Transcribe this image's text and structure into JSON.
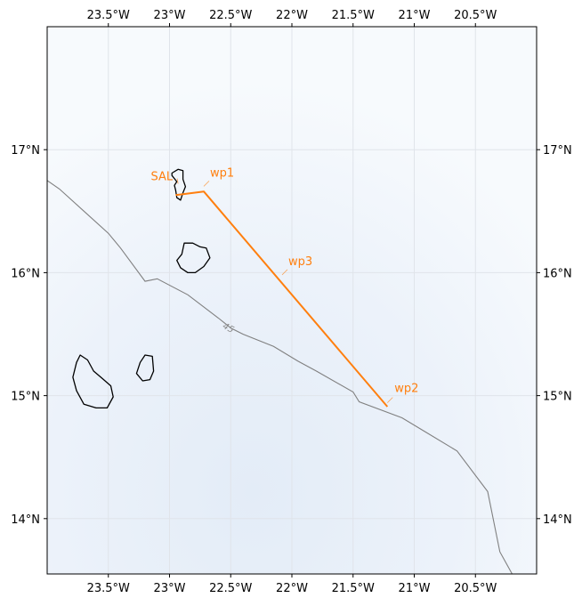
{
  "map": {
    "lon_range": [
      -24.0,
      -20.0
    ],
    "lat_range": [
      13.55,
      18.0
    ],
    "lon_ticks": [
      {
        "value": -23.5,
        "label": "23.5°W"
      },
      {
        "value": -23.0,
        "label": "23°W"
      },
      {
        "value": -22.5,
        "label": "22.5°W"
      },
      {
        "value": -22.0,
        "label": "22°W"
      },
      {
        "value": -21.5,
        "label": "21.5°W"
      },
      {
        "value": -21.0,
        "label": "21°W"
      },
      {
        "value": -20.5,
        "label": "20.5°W"
      }
    ],
    "lat_ticks": [
      {
        "value": 17.0,
        "label": "17°N"
      },
      {
        "value": 16.0,
        "label": "16°N"
      },
      {
        "value": 15.0,
        "label": "15°N"
      },
      {
        "value": 14.0,
        "label": "14°N"
      }
    ],
    "gridlines": true,
    "colors": {
      "flight_track": "#ff7f0e",
      "waypoint_label": "#ff7f0e",
      "contour": "#808080",
      "coastline": "#000000",
      "gridline": "#e0e4ea"
    },
    "flight_track": {
      "points": [
        {
          "lon": -22.95,
          "lat": 16.63
        },
        {
          "lon": -22.72,
          "lat": 16.66
        },
        {
          "lon": -21.22,
          "lat": 14.91
        }
      ]
    },
    "waypoints": [
      {
        "name": "SAL",
        "lon": -22.93,
        "lat": 16.78,
        "label": "SAL"
      },
      {
        "name": "wp1",
        "lon": -22.72,
        "lat": 16.76,
        "label": "wp1"
      },
      {
        "name": "wp3",
        "lon": -22.08,
        "lat": 16.04,
        "label": "wp3"
      },
      {
        "name": "wp2",
        "lon": -21.22,
        "lat": 15.0,
        "label": "wp2"
      }
    ],
    "contour": {
      "label": "45",
      "label_at": {
        "lon": -22.52,
        "lat": 15.55
      },
      "points": [
        {
          "lon": -24.0,
          "lat": 16.75
        },
        {
          "lon": -23.9,
          "lat": 16.68
        },
        {
          "lon": -23.7,
          "lat": 16.5
        },
        {
          "lon": -23.5,
          "lat": 16.32
        },
        {
          "lon": -23.4,
          "lat": 16.2
        },
        {
          "lon": -23.2,
          "lat": 15.93
        },
        {
          "lon": -23.1,
          "lat": 15.95
        },
        {
          "lon": -22.85,
          "lat": 15.82
        },
        {
          "lon": -22.6,
          "lat": 15.63
        },
        {
          "lon": -22.5,
          "lat": 15.55
        },
        {
          "lon": -22.4,
          "lat": 15.5
        },
        {
          "lon": -22.15,
          "lat": 15.4
        },
        {
          "lon": -21.95,
          "lat": 15.28
        },
        {
          "lon": -21.8,
          "lat": 15.2
        },
        {
          "lon": -21.5,
          "lat": 15.03
        },
        {
          "lon": -21.45,
          "lat": 14.95
        },
        {
          "lon": -21.1,
          "lat": 14.82
        },
        {
          "lon": -20.9,
          "lat": 14.7
        },
        {
          "lon": -20.7,
          "lat": 14.58
        },
        {
          "lon": -20.65,
          "lat": 14.55
        },
        {
          "lon": -20.4,
          "lat": 14.22
        },
        {
          "lon": -20.3,
          "lat": 13.73
        },
        {
          "lon": -20.2,
          "lat": 13.55
        }
      ]
    },
    "islands": [
      {
        "name": "sal",
        "points": [
          {
            "lon": -22.98,
            "lat": 16.81
          },
          {
            "lon": -22.93,
            "lat": 16.84
          },
          {
            "lon": -22.89,
            "lat": 16.83
          },
          {
            "lon": -22.89,
            "lat": 16.76
          },
          {
            "lon": -22.87,
            "lat": 16.7
          },
          {
            "lon": -22.89,
            "lat": 16.65
          },
          {
            "lon": -22.91,
            "lat": 16.59
          },
          {
            "lon": -22.94,
            "lat": 16.61
          },
          {
            "lon": -22.95,
            "lat": 16.67
          },
          {
            "lon": -22.96,
            "lat": 16.71
          },
          {
            "lon": -22.94,
            "lat": 16.74
          },
          {
            "lon": -22.98,
            "lat": 16.79
          }
        ]
      },
      {
        "name": "boa-vista",
        "points": [
          {
            "lon": -22.88,
            "lat": 16.24
          },
          {
            "lon": -22.81,
            "lat": 16.24
          },
          {
            "lon": -22.75,
            "lat": 16.21
          },
          {
            "lon": -22.7,
            "lat": 16.2
          },
          {
            "lon": -22.67,
            "lat": 16.12
          },
          {
            "lon": -22.72,
            "lat": 16.05
          },
          {
            "lon": -22.79,
            "lat": 16.0
          },
          {
            "lon": -22.85,
            "lat": 16.0
          },
          {
            "lon": -22.91,
            "lat": 16.04
          },
          {
            "lon": -22.94,
            "lat": 16.1
          },
          {
            "lon": -22.9,
            "lat": 16.15
          }
        ]
      },
      {
        "name": "maio",
        "points": [
          {
            "lon": -23.2,
            "lat": 15.33
          },
          {
            "lon": -23.14,
            "lat": 15.32
          },
          {
            "lon": -23.13,
            "lat": 15.2
          },
          {
            "lon": -23.16,
            "lat": 15.13
          },
          {
            "lon": -23.22,
            "lat": 15.12
          },
          {
            "lon": -23.27,
            "lat": 15.18
          },
          {
            "lon": -23.24,
            "lat": 15.27
          }
        ]
      },
      {
        "name": "santiago",
        "points": [
          {
            "lon": -23.73,
            "lat": 15.33
          },
          {
            "lon": -23.67,
            "lat": 15.29
          },
          {
            "lon": -23.62,
            "lat": 15.2
          },
          {
            "lon": -23.55,
            "lat": 15.14
          },
          {
            "lon": -23.48,
            "lat": 15.08
          },
          {
            "lon": -23.46,
            "lat": 14.99
          },
          {
            "lon": -23.51,
            "lat": 14.9
          },
          {
            "lon": -23.6,
            "lat": 14.9
          },
          {
            "lon": -23.7,
            "lat": 14.93
          },
          {
            "lon": -23.76,
            "lat": 15.04
          },
          {
            "lon": -23.79,
            "lat": 15.15
          },
          {
            "lon": -23.76,
            "lat": 15.27
          }
        ]
      }
    ]
  }
}
